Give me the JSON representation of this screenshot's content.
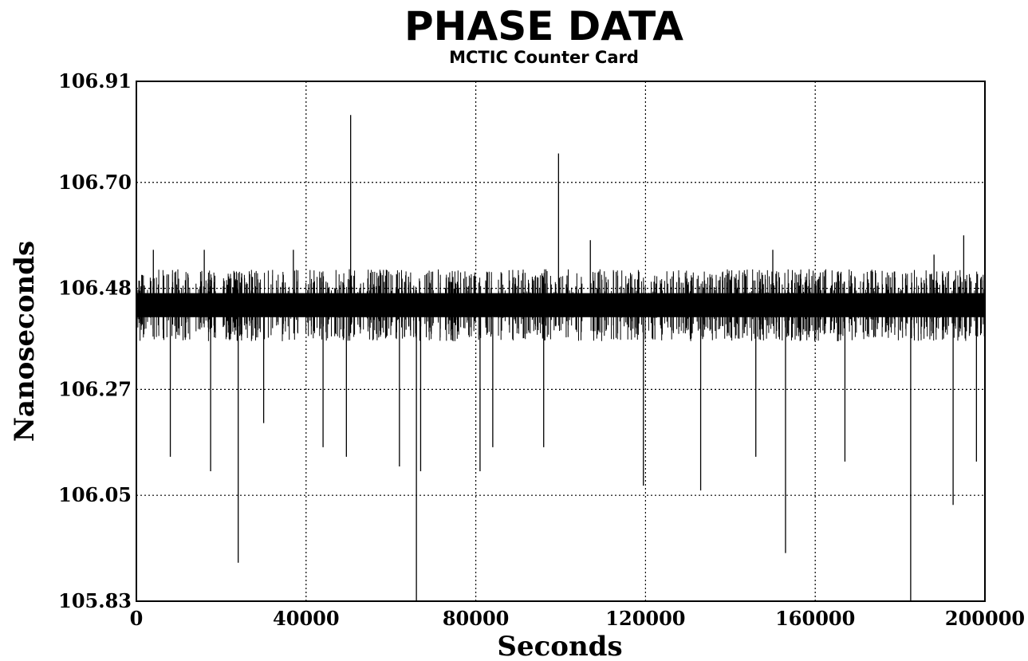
{
  "chart_data": {
    "type": "line",
    "title": "PHASE DATA",
    "subtitle": "MCTIC Counter Card",
    "xlabel": "Seconds",
    "ylabel": "Nanoseconds",
    "xlim": [
      0,
      200000
    ],
    "ylim": [
      105.83,
      106.91
    ],
    "x_ticks": [
      0,
      40000,
      80000,
      120000,
      160000,
      200000
    ],
    "x_tick_labels": [
      "0",
      "40000",
      "80000",
      "120000",
      "160000",
      "200000"
    ],
    "y_ticks": [
      105.83,
      106.05,
      106.27,
      106.48,
      106.7,
      106.91
    ],
    "y_tick_labels": [
      "105.83",
      "106.05",
      "106.27",
      "106.48",
      "106.70",
      "106.91"
    ],
    "grid": true,
    "series": [
      {
        "baseline_band": [
          106.42,
          106.47
        ],
        "spikes": [
          {
            "x": 50500,
            "y": 106.84
          },
          {
            "x": 99500,
            "y": 106.76
          },
          {
            "x": 195000,
            "y": 106.59
          },
          {
            "x": 4000,
            "y": 106.56
          },
          {
            "x": 16000,
            "y": 106.56
          },
          {
            "x": 37000,
            "y": 106.56
          },
          {
            "x": 107000,
            "y": 106.58
          },
          {
            "x": 150000,
            "y": 106.56
          },
          {
            "x": 188000,
            "y": 106.55
          },
          {
            "x": 8000,
            "y": 106.13
          },
          {
            "x": 17500,
            "y": 106.1
          },
          {
            "x": 24000,
            "y": 105.91
          },
          {
            "x": 30000,
            "y": 106.2
          },
          {
            "x": 44000,
            "y": 106.15
          },
          {
            "x": 49500,
            "y": 106.13
          },
          {
            "x": 62000,
            "y": 106.11
          },
          {
            "x": 66000,
            "y": 105.83
          },
          {
            "x": 67000,
            "y": 106.1
          },
          {
            "x": 81000,
            "y": 106.1
          },
          {
            "x": 84000,
            "y": 106.15
          },
          {
            "x": 96000,
            "y": 106.15
          },
          {
            "x": 119500,
            "y": 106.07
          },
          {
            "x": 133000,
            "y": 106.06
          },
          {
            "x": 146000,
            "y": 106.13
          },
          {
            "x": 153000,
            "y": 105.93
          },
          {
            "x": 167000,
            "y": 106.12
          },
          {
            "x": 182500,
            "y": 105.83
          },
          {
            "x": 192500,
            "y": 106.03
          },
          {
            "x": 198000,
            "y": 106.12
          }
        ]
      }
    ]
  }
}
